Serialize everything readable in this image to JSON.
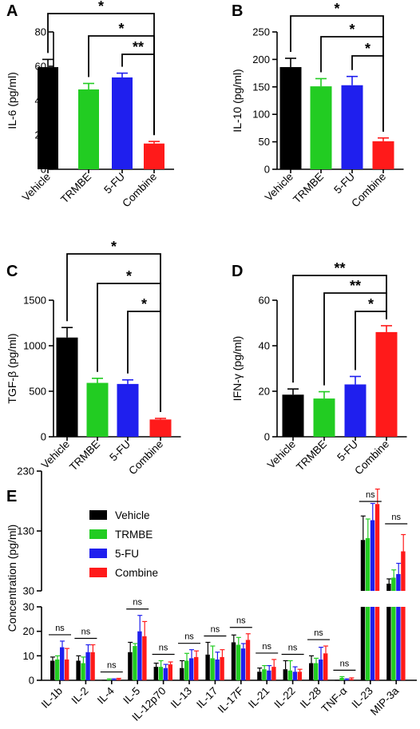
{
  "chart_data": [
    {
      "panel": "A",
      "type": "bar",
      "ylabel": "IL-6 (pg/ml)",
      "ylim": [
        0,
        80
      ],
      "yticks": [
        0,
        20,
        40,
        60,
        80
      ],
      "categories": [
        "Vehicle",
        "TRMBE",
        "5-FU",
        "Combine"
      ],
      "values": [
        59.5,
        46.5,
        53.5,
        15
      ],
      "errors": [
        4.5,
        3.5,
        2.5,
        1.2
      ],
      "colors": [
        "#000000",
        "#22cc22",
        "#1f1fee",
        "#ff1a1a"
      ],
      "significance": [
        "*",
        "*",
        "**"
      ]
    },
    {
      "panel": "B",
      "type": "bar",
      "ylabel": "IL-10 (pg/ml)",
      "ylim": [
        0,
        250
      ],
      "yticks": [
        0,
        50,
        100,
        150,
        200,
        250
      ],
      "categories": [
        "Vehicle",
        "TRMBE",
        "5-FU",
        "Combine"
      ],
      "values": [
        186,
        151,
        153,
        51
      ],
      "errors": [
        16,
        14,
        16,
        6
      ],
      "colors": [
        "#000000",
        "#22cc22",
        "#1f1fee",
        "#ff1a1a"
      ],
      "significance": [
        "*",
        "*",
        "*"
      ]
    },
    {
      "panel": "C",
      "type": "bar",
      "ylabel": "TGF-β (pg/ml)",
      "ylim": [
        0,
        1500
      ],
      "yticks": [
        0,
        500,
        1000,
        1500
      ],
      "categories": [
        "Vehicle",
        "TRMBE",
        "5-FU",
        "Combine"
      ],
      "values": [
        1090,
        592,
        580,
        190
      ],
      "errors": [
        110,
        50,
        45,
        12
      ],
      "colors": [
        "#000000",
        "#22cc22",
        "#1f1fee",
        "#ff1a1a"
      ],
      "significance": [
        "*",
        "*",
        "*"
      ]
    },
    {
      "panel": "D",
      "type": "bar",
      "ylabel": "IFN-γ (pg/ml)",
      "ylim": [
        0,
        60
      ],
      "yticks": [
        0,
        20,
        40,
        60
      ],
      "categories": [
        "Vehicle",
        "TRMBE",
        "5-FU",
        "Combine"
      ],
      "values": [
        18.5,
        16.8,
        23,
        46
      ],
      "errors": [
        2.5,
        3,
        3.5,
        2.8
      ],
      "colors": [
        "#000000",
        "#22cc22",
        "#1f1fee",
        "#ff1a1a"
      ],
      "significance": [
        "**",
        "**",
        "*"
      ]
    },
    {
      "panel": "E",
      "type": "bar",
      "ylabel": "Concentration (pg/ml)",
      "axis_break": true,
      "lower_ylim": [
        0,
        30
      ],
      "lower_yticks": [
        0,
        10,
        20,
        30
      ],
      "upper_ylim": [
        30,
        230
      ],
      "upper_yticks": [
        30,
        130,
        230
      ],
      "categories": [
        "IL-1b",
        "IL-2",
        "IL-4",
        "IL-5",
        "IL-12p70",
        "IL-13",
        "IL-17",
        "IL-17F",
        "IL-21",
        "IL-22",
        "IL-28",
        "TNF-α",
        "IL-23",
        "MIP-3a"
      ],
      "series": [
        {
          "name": "Vehicle",
          "color": "#000000",
          "values": [
            8,
            8,
            0,
            11.5,
            5.5,
            5,
            10.5,
            15.5,
            3.5,
            4.5,
            7,
            0,
            115,
            42
          ],
          "errors": [
            1.5,
            2,
            0,
            4,
            1.5,
            3,
            5,
            3,
            1.5,
            3.5,
            3,
            0,
            40,
            8
          ]
        },
        {
          "name": "TRMBE",
          "color": "#22cc22",
          "values": [
            8.5,
            7,
            0.3,
            14,
            5.5,
            8,
            9,
            14.5,
            4.5,
            4,
            7,
            1,
            118,
            52
          ],
          "errors": [
            1.5,
            2.5,
            0.3,
            1,
            2.5,
            3,
            5,
            3,
            1.5,
            4,
            2,
            0.5,
            32,
            13
          ]
        },
        {
          "name": "5-FU",
          "color": "#1f1fee",
          "values": [
            13.5,
            11.5,
            0.3,
            20,
            5,
            9,
            8.5,
            13,
            4,
            3.5,
            8.5,
            0.3,
            148,
            58
          ],
          "errors": [
            2.5,
            3,
            0.3,
            6.5,
            1.5,
            3.5,
            3,
            2,
            2,
            2,
            5,
            0.3,
            28,
            18
          ]
        },
        {
          "name": "Combine",
          "color": "#ff1a1a",
          "values": [
            8.5,
            11.5,
            0.5,
            18,
            6.5,
            9.5,
            9.5,
            16.5,
            5.5,
            3.5,
            11,
            0.5,
            175,
            96
          ],
          "errors": [
            4.5,
            3,
            0.3,
            6,
            1,
            2.5,
            3,
            2.5,
            3,
            1,
            3,
            0.5,
            25,
            28
          ]
        }
      ],
      "significance": [
        "ns",
        "ns",
        "ns",
        "ns",
        "ns",
        "ns",
        "ns",
        "ns",
        "ns",
        "ns",
        "ns",
        "ns",
        "ns",
        "ns"
      ]
    }
  ]
}
